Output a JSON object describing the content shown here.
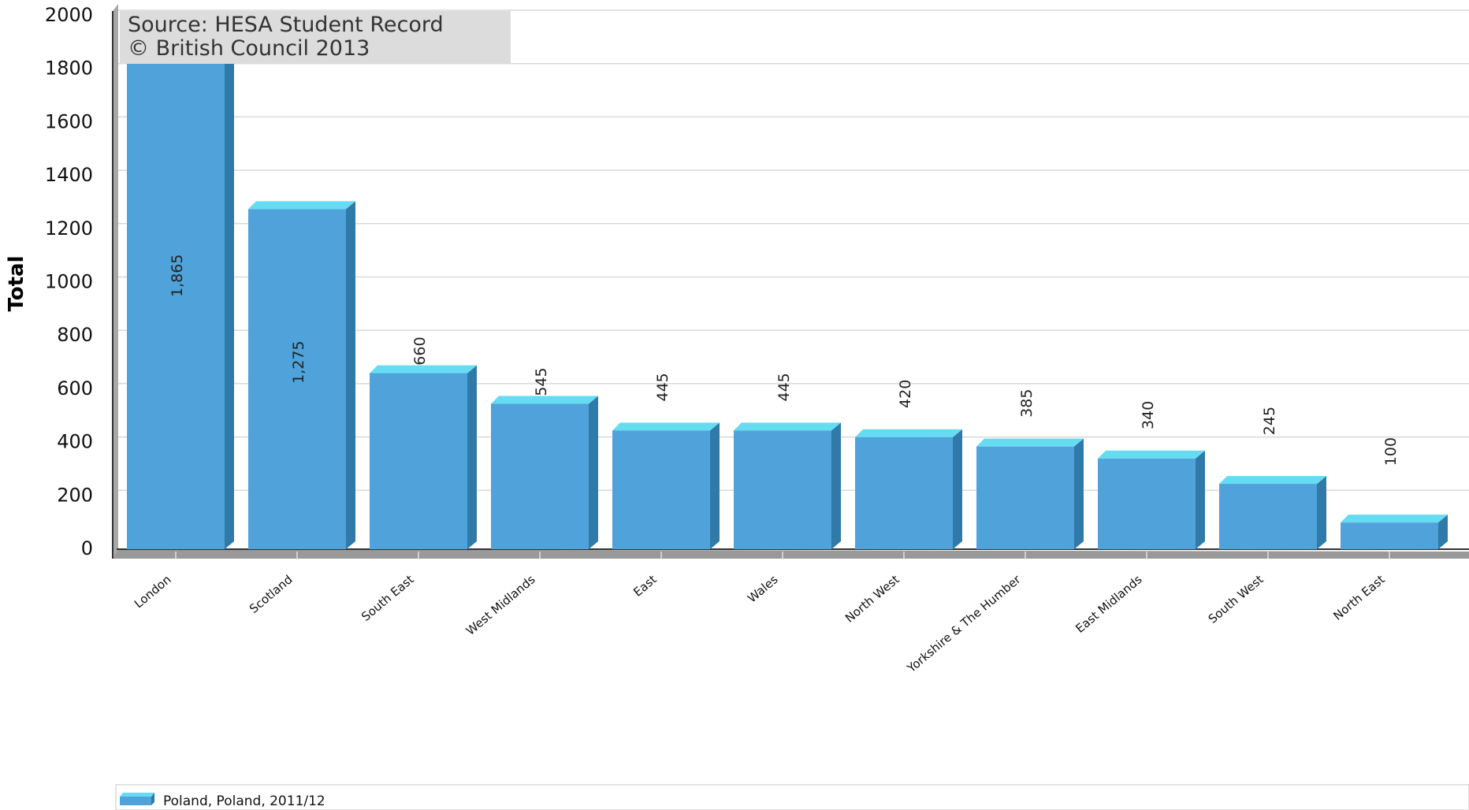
{
  "source": {
    "line1": "Source: HESA Student Record",
    "line2": "© British Council 2013"
  },
  "chart_data": {
    "type": "bar",
    "ylabel": "Total",
    "xlabel": "",
    "ylim": [
      0,
      2000
    ],
    "yticks": [
      0,
      200,
      400,
      600,
      800,
      1000,
      1200,
      1400,
      1600,
      1800,
      2000
    ],
    "grid": true,
    "legend_position": "bottom-left",
    "categories": [
      "London",
      "Scotland",
      "South East",
      "West Midlands",
      "East",
      "Wales",
      "North West",
      "Yorkshire & The Humber",
      "East Midlands",
      "South West",
      "North East"
    ],
    "series": [
      {
        "name": "Poland, Poland, 2011/12",
        "color": "#4fa3da",
        "values": [
          1865,
          1275,
          660,
          545,
          445,
          445,
          420,
          385,
          340,
          245,
          100
        ],
        "labels": [
          "1,865",
          "1,275",
          "660",
          "545",
          "445",
          "445",
          "420",
          "385",
          "340",
          "245",
          "100"
        ]
      }
    ]
  }
}
